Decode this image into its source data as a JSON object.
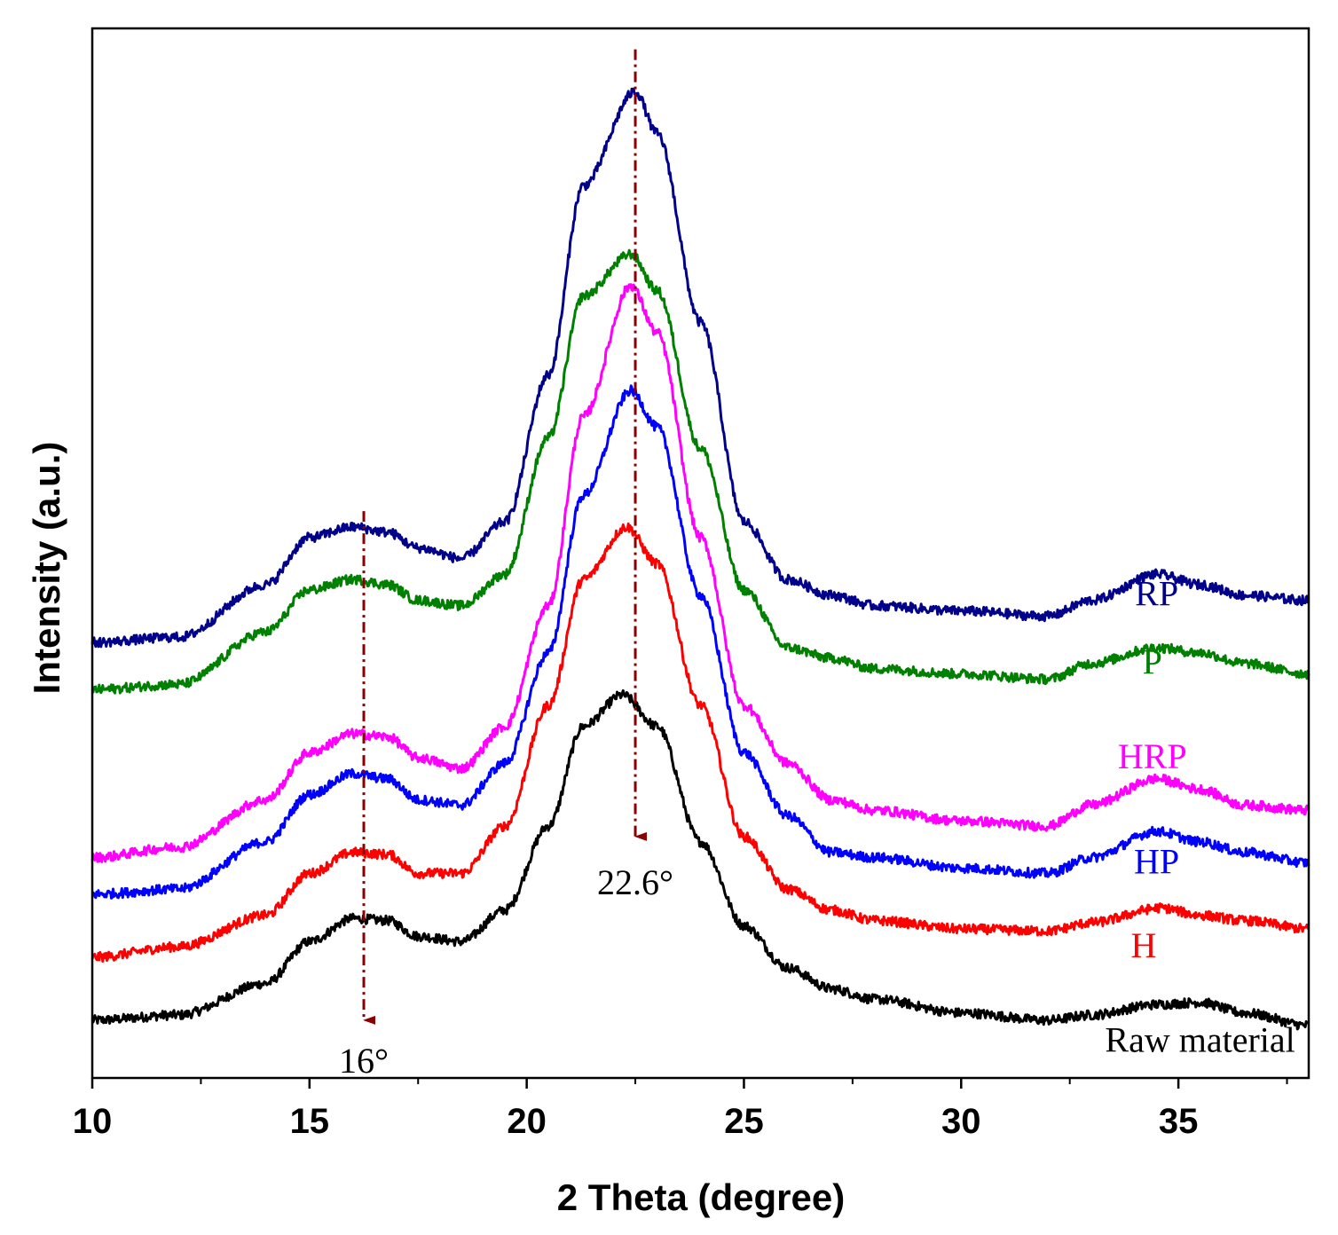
{
  "chart_data": {
    "type": "line",
    "title": "",
    "xlabel": "2 Theta (degree)",
    "ylabel": "Intensity (a.u.)",
    "xlim": [
      10,
      38
    ],
    "ylim": [
      0,
      100
    ],
    "xticks": [
      10,
      15,
      20,
      25,
      30,
      35
    ],
    "xticks_minor": [
      12.5,
      17.5,
      22.5,
      27.5,
      32.5,
      37.5
    ],
    "yticks": [],
    "grid": false,
    "legend": "none (labels placed next to each curve)",
    "series": [
      {
        "name": "Raw material",
        "color": "#000000",
        "label_color": "#000000",
        "label_x": 35.5,
        "label_y": 2.5,
        "x": [
          10,
          12,
          14,
          15,
          16,
          16.8,
          17.5,
          18.5,
          19.5,
          20.5,
          21.3,
          22.2,
          23,
          24,
          25,
          26,
          27,
          28,
          30,
          32,
          33,
          34.5,
          35.5,
          36.5,
          38
        ],
        "values": [
          5.5,
          6.0,
          9.0,
          13.0,
          15.2,
          15.0,
          13.5,
          13.0,
          16.0,
          24.0,
          33.5,
          36.5,
          33.5,
          22.5,
          14.5,
          10.5,
          8.5,
          7.5,
          6.2,
          5.5,
          6.0,
          7.0,
          7.2,
          6.2,
          5.0
        ]
      },
      {
        "name": "H",
        "color": "#ff0000",
        "label_color": "#ff0000",
        "label_x": 34.2,
        "label_y": 11.5,
        "x": [
          10,
          12,
          14,
          15,
          16,
          16.8,
          17.5,
          18.5,
          19.5,
          20.5,
          21.3,
          22.3,
          23,
          24,
          25,
          26,
          27,
          28,
          30,
          32,
          33,
          34.6,
          35.5,
          36.5,
          38
        ],
        "values": [
          11.5,
          12.5,
          15.5,
          19.5,
          21.5,
          21.3,
          19.5,
          19.5,
          24.0,
          35.5,
          47.5,
          52.5,
          49.0,
          35.5,
          23.0,
          18.0,
          16.0,
          15.0,
          14.2,
          14.0,
          14.8,
          16.2,
          15.5,
          15.0,
          14.2
        ]
      },
      {
        "name": "HP",
        "color": "#0000ff",
        "label_color": "#0000ff",
        "label_x": 34.5,
        "label_y": 19.5,
        "x": [
          10,
          12,
          14,
          15,
          16,
          16.8,
          17.5,
          18.5,
          19.5,
          20.5,
          21.3,
          22.4,
          23,
          24,
          25,
          26,
          27,
          28,
          30,
          32,
          33,
          34.5,
          35.5,
          36.5,
          38
        ],
        "values": [
          17.5,
          18.0,
          22.5,
          27.0,
          29.0,
          28.5,
          26.5,
          26.0,
          30.0,
          40.5,
          55.5,
          65.5,
          62.0,
          46.0,
          31.0,
          25.0,
          21.5,
          21.0,
          20.0,
          19.5,
          21.0,
          23.5,
          22.5,
          21.5,
          20.5
        ]
      },
      {
        "name": "HRP",
        "color": "#ff00ff",
        "label_color": "#ff00ff",
        "label_x": 34.4,
        "label_y": 29.5,
        "x": [
          10,
          12,
          14,
          15,
          16,
          16.8,
          17.5,
          18.5,
          19.5,
          20.5,
          21.3,
          22.4,
          23,
          24,
          25,
          26,
          27,
          28,
          30,
          32,
          33,
          34.5,
          35.5,
          36.5,
          38
        ],
        "values": [
          21.0,
          22.0,
          26.5,
          31.0,
          32.8,
          32.5,
          30.5,
          29.5,
          33.5,
          45.0,
          63.0,
          75.5,
          71.0,
          51.5,
          35.5,
          30.0,
          26.5,
          25.5,
          24.5,
          24.0,
          26.0,
          28.5,
          27.5,
          26.0,
          25.5
        ]
      },
      {
        "name": "P",
        "color": "#008000",
        "label_color": "#008000",
        "label_x": 34.4,
        "label_y": 38.5,
        "x": [
          10,
          12,
          14,
          15,
          16,
          16.8,
          17.5,
          18.5,
          19.5,
          20.5,
          21.3,
          22.4,
          23,
          24,
          25,
          26,
          27,
          28,
          30,
          32,
          33,
          34.5,
          35.5,
          36.5,
          38
        ],
        "values": [
          37.0,
          37.5,
          42.5,
          46.5,
          47.5,
          47.0,
          45.5,
          45.0,
          48.0,
          61.0,
          74.5,
          78.5,
          75.0,
          60.0,
          46.5,
          41.0,
          40.0,
          39.0,
          38.5,
          38.0,
          39.5,
          41.0,
          40.5,
          39.5,
          38.5
        ]
      },
      {
        "name": "RP",
        "color": "#00008b",
        "label_color": "#00008b",
        "label_x": 34.5,
        "label_y": 45.0,
        "x": [
          10,
          12,
          14,
          15,
          16,
          16.8,
          17.5,
          18.5,
          19.5,
          20.5,
          21.3,
          22.5,
          23,
          24,
          25,
          26,
          27,
          28,
          30,
          32,
          33,
          34.5,
          35.5,
          36.5,
          38
        ],
        "values": [
          41.5,
          42.0,
          47.0,
          51.5,
          52.5,
          52.0,
          50.5,
          49.5,
          53.0,
          67.0,
          85.0,
          94.0,
          90.0,
          72.0,
          53.0,
          47.5,
          46.0,
          45.0,
          44.5,
          44.0,
          45.5,
          48.0,
          47.0,
          46.0,
          45.5
        ]
      }
    ],
    "annotations": [
      {
        "text": "16°",
        "x": 16.25,
        "y_from": 54,
        "y_to": 5.5,
        "label_x": 16.25,
        "label_y": 0.5,
        "color": "#8b0000",
        "style": "dash-dot arrow"
      },
      {
        "text": "22.6°",
        "x": 22.5,
        "y_from": 98,
        "y_to": 23,
        "label_x": 22.5,
        "label_y": 17.5,
        "color": "#8b0000",
        "style": "dash-dot arrow"
      }
    ]
  }
}
